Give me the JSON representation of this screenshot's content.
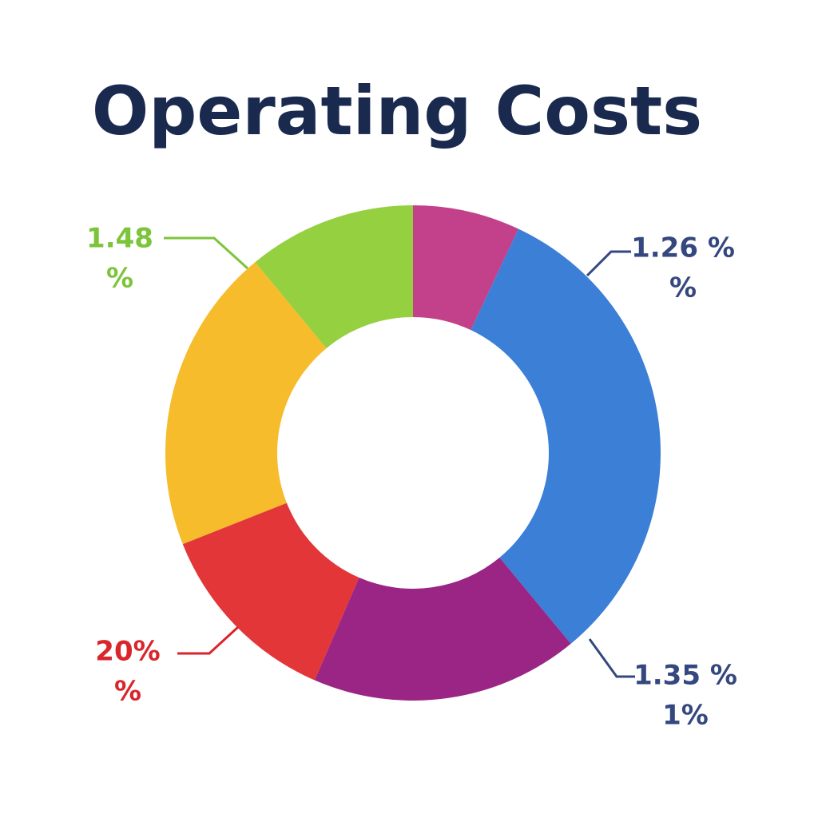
{
  "chart_data": {
    "type": "donut",
    "title": "Operating Costs",
    "values": [
      7,
      32,
      17.5,
      12.5,
      20,
      11
    ],
    "colors": [
      "#c3408a",
      "#3b7fd6",
      "#9a2584",
      "#e23638",
      "#f6bc2c",
      "#94d040"
    ],
    "annotations": [
      {
        "lines": [
          "1.48",
          "%"
        ],
        "color": "#7cc43a"
      },
      {
        "lines": [
          "1.26 %",
          "%"
        ],
        "color": "#34477f"
      },
      {
        "lines": [
          "20%",
          "%"
        ],
        "color": "#d9262c"
      },
      {
        "lines": [
          "1.35 %",
          "1%"
        ],
        "color": "#34477f"
      }
    ]
  }
}
